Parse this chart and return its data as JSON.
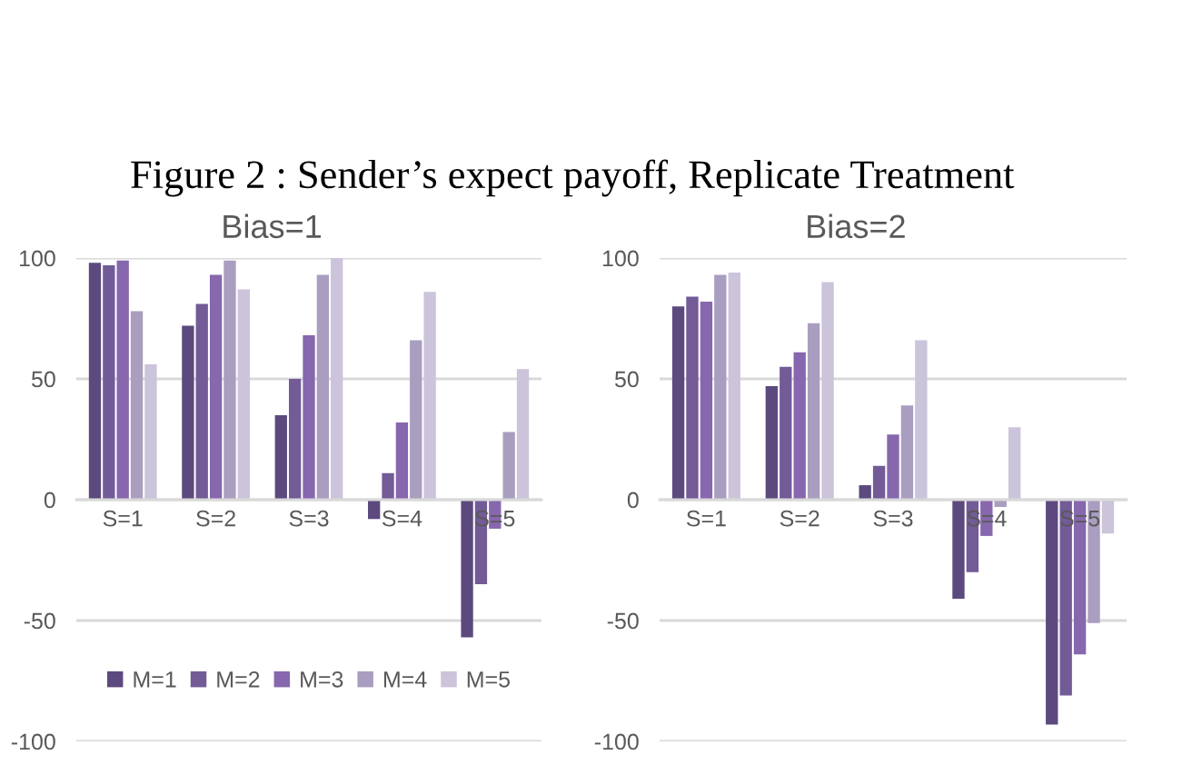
{
  "chart_data": [
    {
      "type": "bar",
      "title": "Bias=1",
      "annotations": [
        "Figure 2 : Sender’s expect payoff, Replicate Treatment"
      ],
      "categories": [
        "S=1",
        "S=2",
        "S=3",
        "S=4",
        "S=5"
      ],
      "series": [
        {
          "name": "M=1",
          "color": "#5c4a7e",
          "values": [
            98,
            72,
            35,
            -8,
            -57
          ]
        },
        {
          "name": "M=2",
          "color": "#725b97",
          "values": [
            97,
            81,
            50,
            11,
            -35
          ]
        },
        {
          "name": "M=3",
          "color": "#8767ad",
          "values": [
            99,
            93,
            68,
            32,
            -12
          ]
        },
        {
          "name": "M=4",
          "color": "#a99ebf",
          "values": [
            78,
            99,
            93,
            66,
            28
          ]
        },
        {
          "name": "M=5",
          "color": "#cbc4da",
          "values": [
            56,
            87,
            100,
            86,
            54
          ]
        }
      ],
      "ylim": [
        -100,
        100
      ],
      "yticks": [
        -100,
        -50,
        0,
        50,
        100
      ],
      "grid": "y",
      "legend": "bottom"
    },
    {
      "type": "bar",
      "title": "Bias=2",
      "categories": [
        "S=1",
        "S=2",
        "S=3",
        "S=4",
        "S=5"
      ],
      "series": [
        {
          "color": "#5c4a7e",
          "values": [
            80,
            47,
            6,
            -41,
            -93
          ]
        },
        {
          "color": "#725b97",
          "values": [
            84,
            55,
            14,
            -30,
            -81
          ]
        },
        {
          "color": "#8767ad",
          "values": [
            82,
            61,
            27,
            -15,
            -64
          ]
        },
        {
          "color": "#a99ebf",
          "values": [
            93,
            73,
            39,
            -3,
            -51
          ]
        },
        {
          "color": "#cbc4da",
          "values": [
            94,
            90,
            66,
            30,
            -14
          ]
        }
      ],
      "ylim": [
        -100,
        100
      ],
      "yticks": [
        -100,
        -50,
        0,
        50,
        100
      ],
      "grid": "y"
    }
  ]
}
